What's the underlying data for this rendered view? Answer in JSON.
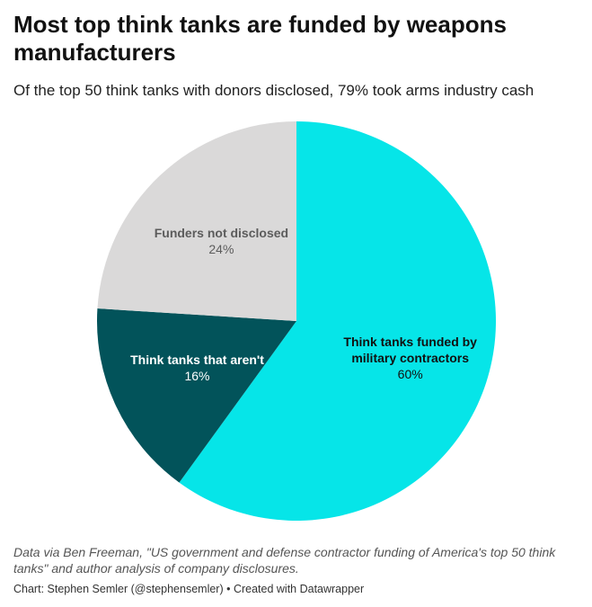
{
  "chart_data": {
    "type": "pie",
    "title": "Most top think tanks are funded by weapons manufacturers",
    "subtitle": "Of the top 50 think tanks with donors disclosed, 79% took arms industry cash",
    "slices": [
      {
        "label": "Think tanks funded by military contractors",
        "label_lines": [
          "Think tanks funded by",
          "military contractors"
        ],
        "value": 60,
        "value_label": "60%",
        "color": "#06e5e8",
        "text_color": "#111111"
      },
      {
        "label": "Think tanks that aren't",
        "label_lines": [
          "Think tanks that aren't"
        ],
        "value": 16,
        "value_label": "16%",
        "color": "#02535a",
        "text_color": "#ffffff"
      },
      {
        "label": "Funders not disclosed",
        "label_lines": [
          "Funders not disclosed"
        ],
        "value": 24,
        "value_label": "24%",
        "color": "#dad9d9",
        "text_color": "#5c5c5c"
      }
    ],
    "start_angle_deg": 0,
    "direction": "clockwise"
  },
  "footer": {
    "note": "Data via Ben Freeman, \"US government and defense contractor funding of America's top 50 think tanks\" and author analysis of company disclosures.",
    "credit": "Chart: Stephen Semler (@stephensemler) • Created with Datawrapper"
  }
}
